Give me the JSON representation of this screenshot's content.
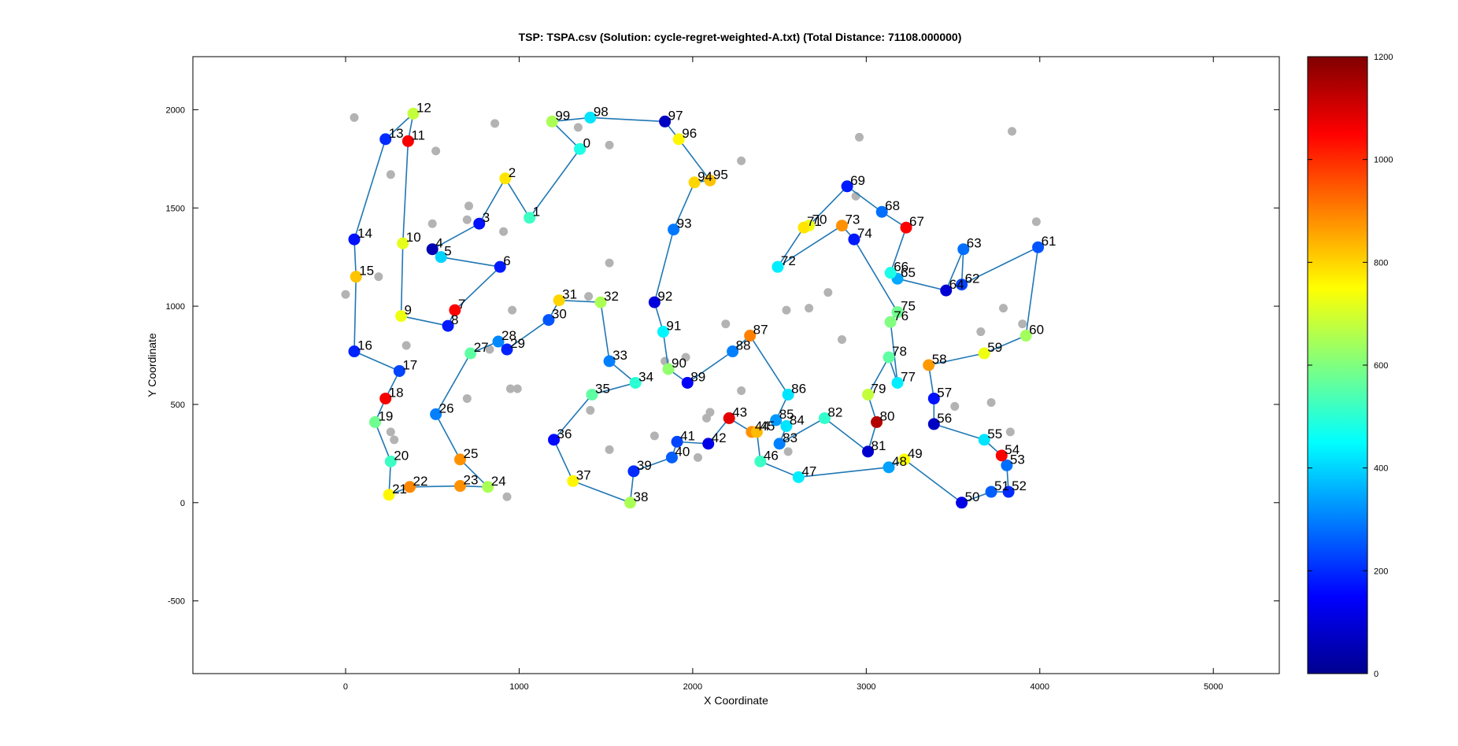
{
  "chart_data": {
    "type": "scatter",
    "title": "TSP: TSPA.csv (Solution: cycle-regret-weighted-A.txt) (Total Distance: 71108.000000)",
    "xlabel": "X Coordinate",
    "ylabel": "Y Coordinate",
    "xlim": [
      -880,
      5380
    ],
    "ylim": [
      -870,
      2270
    ],
    "xticks": [
      0,
      1000,
      2000,
      3000,
      4000,
      5000
    ],
    "yticks": [
      -500,
      0,
      500,
      1000,
      1500,
      2000
    ],
    "grid": false,
    "colorbar": {
      "min": 0,
      "max": 1200,
      "ticks": [
        0,
        200,
        400,
        600,
        800,
        1000,
        1200
      ],
      "colormap": "jet"
    },
    "colors": {
      "edge": "#1f77b4",
      "unselected": "#b3b3b3"
    },
    "selected_nodes": [
      {
        "id": 0,
        "x": 1350,
        "y": 1800,
        "cost": 480
      },
      {
        "id": 1,
        "x": 1060,
        "y": 1450,
        "cost": 520
      },
      {
        "id": 2,
        "x": 920,
        "y": 1650,
        "cost": 780
      },
      {
        "id": 3,
        "x": 770,
        "y": 1420,
        "cost": 170
      },
      {
        "id": 4,
        "x": 500,
        "y": 1290,
        "cost": 60
      },
      {
        "id": 5,
        "x": 550,
        "y": 1250,
        "cost": 400
      },
      {
        "id": 6,
        "x": 890,
        "y": 1200,
        "cost": 180
      },
      {
        "id": 7,
        "x": 630,
        "y": 980,
        "cost": 1050
      },
      {
        "id": 8,
        "x": 590,
        "y": 900,
        "cost": 180
      },
      {
        "id": 9,
        "x": 320,
        "y": 950,
        "cost": 730
      },
      {
        "id": 10,
        "x": 330,
        "y": 1320,
        "cost": 720
      },
      {
        "id": 11,
        "x": 360,
        "y": 1840,
        "cost": 1060
      },
      {
        "id": 12,
        "x": 390,
        "y": 1980,
        "cost": 680
      },
      {
        "id": 13,
        "x": 230,
        "y": 1850,
        "cost": 200
      },
      {
        "id": 14,
        "x": 50,
        "y": 1340,
        "cost": 170
      },
      {
        "id": 15,
        "x": 60,
        "y": 1150,
        "cost": 820
      },
      {
        "id": 16,
        "x": 50,
        "y": 770,
        "cost": 190
      },
      {
        "id": 17,
        "x": 310,
        "y": 670,
        "cost": 230
      },
      {
        "id": 18,
        "x": 230,
        "y": 530,
        "cost": 1060
      },
      {
        "id": 19,
        "x": 170,
        "y": 410,
        "cost": 580
      },
      {
        "id": 20,
        "x": 260,
        "y": 210,
        "cost": 520
      },
      {
        "id": 21,
        "x": 250,
        "y": 40,
        "cost": 760
      },
      {
        "id": 22,
        "x": 370,
        "y": 80,
        "cost": 890
      },
      {
        "id": 23,
        "x": 660,
        "y": 85,
        "cost": 880
      },
      {
        "id": 24,
        "x": 820,
        "y": 80,
        "cost": 650
      },
      {
        "id": 25,
        "x": 660,
        "y": 220,
        "cost": 880
      },
      {
        "id": 26,
        "x": 520,
        "y": 450,
        "cost": 300
      },
      {
        "id": 27,
        "x": 720,
        "y": 760,
        "cost": 560
      },
      {
        "id": 28,
        "x": 880,
        "y": 820,
        "cost": 310
      },
      {
        "id": 29,
        "x": 930,
        "y": 780,
        "cost": 190
      },
      {
        "id": 30,
        "x": 1170,
        "y": 930,
        "cost": 250
      },
      {
        "id": 31,
        "x": 1230,
        "y": 1030,
        "cost": 800
      },
      {
        "id": 32,
        "x": 1470,
        "y": 1020,
        "cost": 650
      },
      {
        "id": 33,
        "x": 1520,
        "y": 720,
        "cost": 300
      },
      {
        "id": 34,
        "x": 1670,
        "y": 610,
        "cost": 500
      },
      {
        "id": 35,
        "x": 1420,
        "y": 550,
        "cost": 560
      },
      {
        "id": 36,
        "x": 1200,
        "y": 320,
        "cost": 160
      },
      {
        "id": 37,
        "x": 1310,
        "y": 110,
        "cost": 760
      },
      {
        "id": 38,
        "x": 1640,
        "y": 0,
        "cost": 650
      },
      {
        "id": 39,
        "x": 1660,
        "y": 160,
        "cost": 200
      },
      {
        "id": 40,
        "x": 1880,
        "y": 230,
        "cost": 260
      },
      {
        "id": 41,
        "x": 1910,
        "y": 310,
        "cost": 230
      },
      {
        "id": 42,
        "x": 2090,
        "y": 300,
        "cost": 120
      },
      {
        "id": 43,
        "x": 2210,
        "y": 430,
        "cost": 1080
      },
      {
        "id": 44,
        "x": 2340,
        "y": 360,
        "cost": 880
      },
      {
        "id": 45,
        "x": 2370,
        "y": 360,
        "cost": 830
      },
      {
        "id": 46,
        "x": 2390,
        "y": 210,
        "cost": 520
      },
      {
        "id": 47,
        "x": 2610,
        "y": 130,
        "cost": 430
      },
      {
        "id": 48,
        "x": 3130,
        "y": 180,
        "cost": 340
      },
      {
        "id": 49,
        "x": 3220,
        "y": 220,
        "cost": 750
      },
      {
        "id": 50,
        "x": 3550,
        "y": 0,
        "cost": 120
      },
      {
        "id": 51,
        "x": 3720,
        "y": 55,
        "cost": 260
      },
      {
        "id": 52,
        "x": 3820,
        "y": 55,
        "cost": 200
      },
      {
        "id": 53,
        "x": 3810,
        "y": 190,
        "cost": 280
      },
      {
        "id": 54,
        "x": 3780,
        "y": 240,
        "cost": 1050
      },
      {
        "id": 55,
        "x": 3680,
        "y": 320,
        "cost": 420
      },
      {
        "id": 56,
        "x": 3390,
        "y": 400,
        "cost": 80
      },
      {
        "id": 57,
        "x": 3390,
        "y": 530,
        "cost": 170
      },
      {
        "id": 58,
        "x": 3360,
        "y": 700,
        "cost": 870
      },
      {
        "id": 59,
        "x": 3680,
        "y": 760,
        "cost": 730
      },
      {
        "id": 60,
        "x": 3920,
        "y": 850,
        "cost": 640
      },
      {
        "id": 61,
        "x": 3990,
        "y": 1300,
        "cost": 250
      },
      {
        "id": 62,
        "x": 3550,
        "y": 1110,
        "cost": 230
      },
      {
        "id": 63,
        "x": 3560,
        "y": 1290,
        "cost": 280
      },
      {
        "id": 64,
        "x": 3460,
        "y": 1080,
        "cost": 100
      },
      {
        "id": 65,
        "x": 3180,
        "y": 1140,
        "cost": 350
      },
      {
        "id": 66,
        "x": 3140,
        "y": 1170,
        "cost": 480
      },
      {
        "id": 67,
        "x": 3230,
        "y": 1400,
        "cost": 1050
      },
      {
        "id": 68,
        "x": 3090,
        "y": 1480,
        "cost": 280
      },
      {
        "id": 69,
        "x": 2890,
        "y": 1610,
        "cost": 180
      },
      {
        "id": 70,
        "x": 2670,
        "y": 1410,
        "cost": 730
      },
      {
        "id": 71,
        "x": 2640,
        "y": 1400,
        "cost": 780
      },
      {
        "id": 72,
        "x": 2490,
        "y": 1200,
        "cost": 430
      },
      {
        "id": 73,
        "x": 2860,
        "y": 1410,
        "cost": 880
      },
      {
        "id": 74,
        "x": 2930,
        "y": 1340,
        "cost": 180
      },
      {
        "id": 75,
        "x": 3180,
        "y": 970,
        "cost": 580
      },
      {
        "id": 76,
        "x": 3140,
        "y": 920,
        "cost": 600
      },
      {
        "id": 77,
        "x": 3180,
        "y": 610,
        "cost": 430
      },
      {
        "id": 78,
        "x": 3130,
        "y": 740,
        "cost": 560
      },
      {
        "id": 79,
        "x": 3010,
        "y": 550,
        "cost": 680
      },
      {
        "id": 80,
        "x": 3060,
        "y": 410,
        "cost": 1140
      },
      {
        "id": 81,
        "x": 3010,
        "y": 260,
        "cost": 90
      },
      {
        "id": 82,
        "x": 2760,
        "y": 430,
        "cost": 510
      },
      {
        "id": 83,
        "x": 2500,
        "y": 300,
        "cost": 300
      },
      {
        "id": 84,
        "x": 2540,
        "y": 390,
        "cost": 420
      },
      {
        "id": 85,
        "x": 2480,
        "y": 420,
        "cost": 330
      },
      {
        "id": 86,
        "x": 2550,
        "y": 550,
        "cost": 420
      },
      {
        "id": 87,
        "x": 2330,
        "y": 850,
        "cost": 900
      },
      {
        "id": 88,
        "x": 2230,
        "y": 770,
        "cost": 300
      },
      {
        "id": 89,
        "x": 1970,
        "y": 610,
        "cost": 150
      },
      {
        "id": 90,
        "x": 1860,
        "y": 680,
        "cost": 620
      },
      {
        "id": 91,
        "x": 1830,
        "y": 870,
        "cost": 440
      },
      {
        "id": 92,
        "x": 1780,
        "y": 1020,
        "cost": 110
      },
      {
        "id": 93,
        "x": 1890,
        "y": 1390,
        "cost": 290
      },
      {
        "id": 94,
        "x": 2010,
        "y": 1630,
        "cost": 800
      },
      {
        "id": 95,
        "x": 2100,
        "y": 1640,
        "cost": 820
      },
      {
        "id": 96,
        "x": 1920,
        "y": 1850,
        "cost": 760
      },
      {
        "id": 97,
        "x": 1840,
        "y": 1940,
        "cost": 80
      },
      {
        "id": 98,
        "x": 1410,
        "y": 1960,
        "cost": 420
      },
      {
        "id": 99,
        "x": 1190,
        "y": 1940,
        "cost": 650
      }
    ],
    "cycle": [
      0,
      1,
      2,
      3,
      4,
      5,
      6,
      7,
      8,
      9,
      10,
      11,
      12,
      13,
      14,
      15,
      16,
      17,
      18,
      19,
      20,
      21,
      22,
      23,
      24,
      25,
      26,
      27,
      28,
      29,
      30,
      31,
      32,
      33,
      34,
      35,
      36,
      37,
      38,
      39,
      40,
      41,
      42,
      43,
      44,
      45,
      46,
      47,
      48,
      49,
      50,
      51,
      52,
      53,
      54,
      55,
      56,
      57,
      58,
      59,
      60,
      61,
      62,
      63,
      64,
      65,
      66,
      67,
      68,
      69,
      70,
      71,
      72,
      73,
      74,
      75,
      76,
      77,
      78,
      79,
      80,
      81,
      82,
      83,
      84,
      85,
      86,
      87,
      88,
      89,
      90,
      91,
      92,
      93,
      94,
      95,
      96,
      97,
      98,
      99
    ],
    "unselected_nodes": [
      {
        "x": 50,
        "y": 1960
      },
      {
        "x": 860,
        "y": 1930
      },
      {
        "x": 1340,
        "y": 1910
      },
      {
        "x": 1520,
        "y": 1820
      },
      {
        "x": 520,
        "y": 1790
      },
      {
        "x": 260,
        "y": 1670
      },
      {
        "x": 2280,
        "y": 1740
      },
      {
        "x": 3840,
        "y": 1890
      },
      {
        "x": 2960,
        "y": 1860
      },
      {
        "x": 2940,
        "y": 1560
      },
      {
        "x": 3980,
        "y": 1430
      },
      {
        "x": 710,
        "y": 1510
      },
      {
        "x": 500,
        "y": 1420
      },
      {
        "x": 700,
        "y": 1440
      },
      {
        "x": 910,
        "y": 1380
      },
      {
        "x": 1520,
        "y": 1220
      },
      {
        "x": 190,
        "y": 1150
      },
      {
        "x": 0,
        "y": 1060
      },
      {
        "x": 1400,
        "y": 1050
      },
      {
        "x": 960,
        "y": 980
      },
      {
        "x": 2540,
        "y": 980
      },
      {
        "x": 2670,
        "y": 990
      },
      {
        "x": 2780,
        "y": 1070
      },
      {
        "x": 3790,
        "y": 990
      },
      {
        "x": 3900,
        "y": 910
      },
      {
        "x": 3660,
        "y": 870
      },
      {
        "x": 2190,
        "y": 910
      },
      {
        "x": 2860,
        "y": 830
      },
      {
        "x": 350,
        "y": 800
      },
      {
        "x": 830,
        "y": 780
      },
      {
        "x": 1960,
        "y": 740
      },
      {
        "x": 1840,
        "y": 720
      },
      {
        "x": 950,
        "y": 580
      },
      {
        "x": 990,
        "y": 580
      },
      {
        "x": 2280,
        "y": 570
      },
      {
        "x": 700,
        "y": 530
      },
      {
        "x": 1410,
        "y": 470
      },
      {
        "x": 3720,
        "y": 510
      },
      {
        "x": 3510,
        "y": 490
      },
      {
        "x": 2100,
        "y": 460
      },
      {
        "x": 2080,
        "y": 430
      },
      {
        "x": 260,
        "y": 360
      },
      {
        "x": 280,
        "y": 320
      },
      {
        "x": 1780,
        "y": 340
      },
      {
        "x": 3830,
        "y": 360
      },
      {
        "x": 1520,
        "y": 270
      },
      {
        "x": 2550,
        "y": 260
      },
      {
        "x": 2030,
        "y": 230
      },
      {
        "x": 930,
        "y": 30
      }
    ]
  }
}
